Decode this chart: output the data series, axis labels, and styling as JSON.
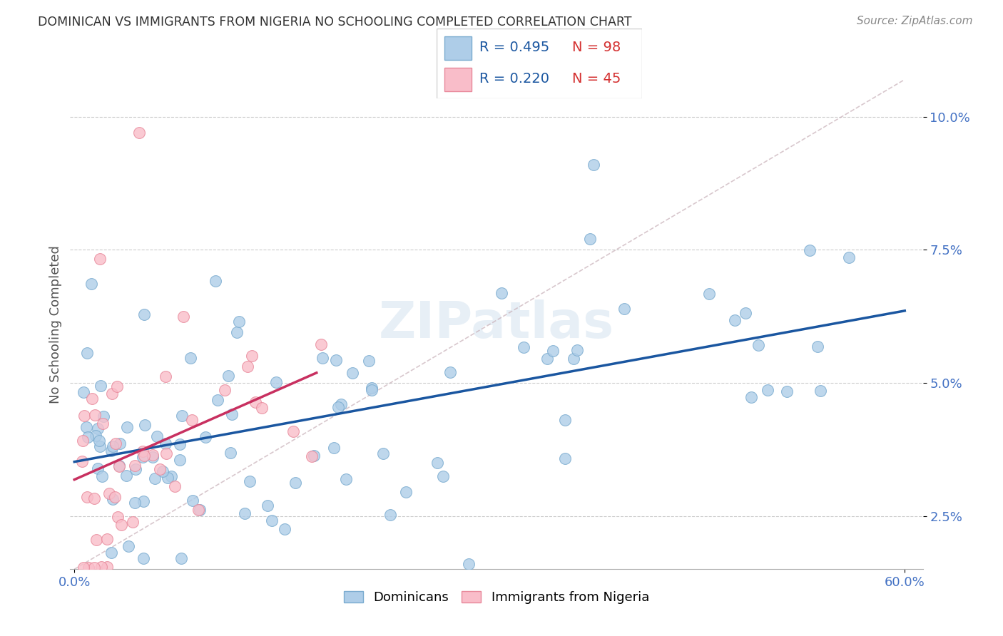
{
  "title": "DOMINICAN VS IMMIGRANTS FROM NIGERIA NO SCHOOLING COMPLETED CORRELATION CHART",
  "source": "Source: ZipAtlas.com",
  "ylabel": "No Schooling Completed",
  "ytick_labels": [
    "2.5%",
    "5.0%",
    "7.5%",
    "10.0%"
  ],
  "ytick_values": [
    0.025,
    0.05,
    0.075,
    0.1
  ],
  "xlim": [
    0.0,
    0.6
  ],
  "ylim": [
    0.015,
    0.107
  ],
  "blue_scatter_color": "#aecde8",
  "blue_edge_color": "#7aabcf",
  "pink_scatter_color": "#f9bdc9",
  "pink_edge_color": "#e8889a",
  "blue_line_color": "#1a56a0",
  "pink_line_color": "#c83060",
  "diag_line_color": "#c8b0b8",
  "legend_blue_r": "R = 0.495",
  "legend_blue_n": "N = 98",
  "legend_pink_r": "R = 0.220",
  "legend_pink_n": "N = 45",
  "watermark": "ZIPatlas",
  "legend_labels": [
    "Dominicans",
    "Immigrants from Nigeria"
  ],
  "title_color": "#333333",
  "source_color": "#888888",
  "axis_tick_color": "#4472c4",
  "ylabel_color": "#555555",
  "grid_color": "#cccccc",
  "blue_line_intercept": 0.035,
  "blue_line_slope": 0.05,
  "pink_line_intercept": 0.03,
  "pink_line_slope": 0.12
}
